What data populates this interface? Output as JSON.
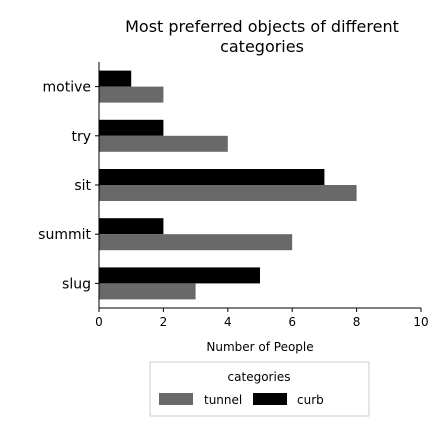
{
  "chart_data": {
    "type": "bar",
    "orientation": "horizontal",
    "title": "Most preferred objects of different categories",
    "title_lines": [
      "Most preferred objects of different",
      "categories"
    ],
    "categories": [
      "slug",
      "summit",
      "sit",
      "try",
      "motive"
    ],
    "series": [
      {
        "name": "tunnel",
        "color": "#696969",
        "values": [
          3,
          6,
          8,
          4,
          2
        ]
      },
      {
        "name": "curb",
        "color": "#000000",
        "values": [
          5,
          2,
          7,
          2,
          1
        ]
      }
    ],
    "xlabel": "Number of People",
    "ylabel": "",
    "xlim": [
      0,
      10
    ],
    "xticks": [
      0,
      2,
      4,
      6,
      8,
      10
    ],
    "grid": false,
    "legend": {
      "title": "categories",
      "placement": "bottom"
    }
  }
}
